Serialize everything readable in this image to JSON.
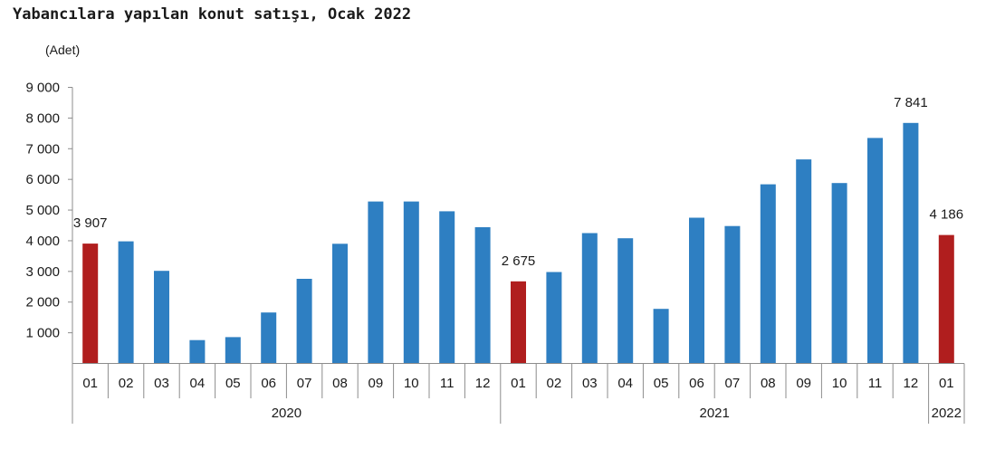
{
  "chart_data": {
    "type": "bar",
    "title": "Yabancılara yapılan konut satışı, Ocak 2022",
    "unit_label": "(Adet)",
    "ylim": [
      0,
      9000
    ],
    "y_ticks": [
      "9 000",
      "8 000",
      "7 000",
      "6 000",
      "5 000",
      "4 000",
      "3 000",
      "2 000",
      "1 000"
    ],
    "y_tick_values": [
      9000,
      8000,
      7000,
      6000,
      5000,
      4000,
      3000,
      2000,
      1000
    ],
    "grid": false,
    "categories": [
      "01",
      "02",
      "03",
      "04",
      "05",
      "06",
      "07",
      "08",
      "09",
      "10",
      "11",
      "12",
      "01",
      "02",
      "03",
      "04",
      "05",
      "06",
      "07",
      "08",
      "09",
      "10",
      "11",
      "12",
      "01"
    ],
    "years": [
      {
        "label": "2020",
        "count": 12
      },
      {
        "label": "2021",
        "count": 12
      },
      {
        "label": "2022",
        "count": 1
      }
    ],
    "values": [
      3907,
      3980,
      3020,
      760,
      860,
      1660,
      2760,
      3900,
      5280,
      5280,
      4960,
      4440,
      2675,
      2980,
      4250,
      4080,
      1780,
      4750,
      4480,
      5840,
      6650,
      5880,
      7350,
      7841,
      4186
    ],
    "highlight_indices": [
      0,
      12,
      24
    ],
    "data_labels": [
      {
        "index": 0,
        "text": "3 907"
      },
      {
        "index": 12,
        "text": "2 675"
      },
      {
        "index": 23,
        "text": "7 841"
      },
      {
        "index": 24,
        "text": "4 186"
      }
    ],
    "colors": {
      "regular": "#2e7fc2",
      "highlight": "#b01e1e",
      "axis": "#8c8c8c"
    }
  }
}
